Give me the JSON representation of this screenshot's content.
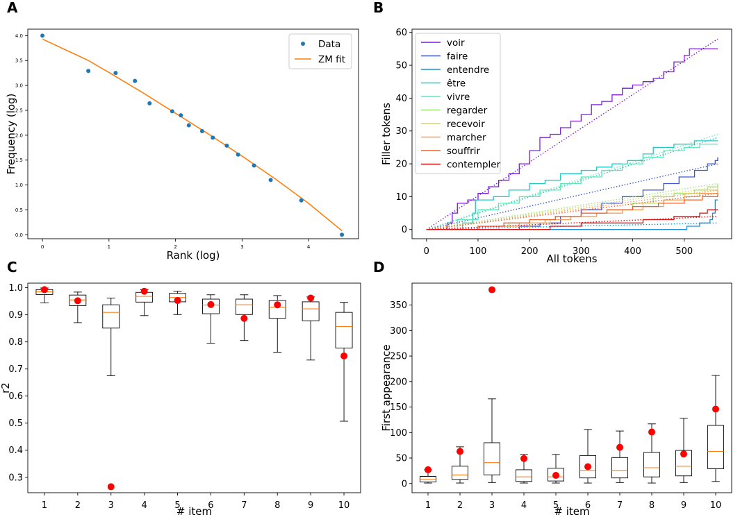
{
  "figure": {
    "panel_labels": [
      "A",
      "B",
      "C",
      "D"
    ]
  },
  "colors": {
    "data": "#1f77b4",
    "fit": "#ff7f0e",
    "median": "#ff7f0e",
    "red_dot": "#ff0000",
    "box": "#000000",
    "verbs": [
      "#7b1fd6",
      "#3f57cf",
      "#1a8fd6",
      "#22c7c7",
      "#5fe8b6",
      "#9fe57a",
      "#cfd96c",
      "#f5a05a",
      "#f0602a",
      "#d81414"
    ]
  },
  "chart_data": [
    {
      "panel": "A",
      "type": "scatter",
      "xlabel": "Rank (log)",
      "ylabel": "Frequency (log)",
      "xlim": [
        -0.22,
        4.75
      ],
      "ylim": [
        -0.08,
        4.13
      ],
      "xticks": [
        0,
        1,
        2,
        3,
        4
      ],
      "xtick_labels": [
        "0",
        "1",
        "2",
        "3",
        "4"
      ],
      "yticks": [
        0,
        0.5,
        1,
        1.5,
        2,
        2.5,
        3,
        3.5,
        4
      ],
      "ytick_labels": [
        "0.0",
        "0.5",
        "1.0",
        "1.5",
        "2.0",
        "2.5",
        "3.0",
        "3.5",
        "4.0"
      ],
      "legend": {
        "position": "upper right",
        "entries": [
          "Data",
          "ZM fit"
        ]
      },
      "series": [
        {
          "name": "Data",
          "kind": "points",
          "x": [
            0,
            0.69,
            1.1,
            1.39,
            1.61,
            1.95,
            2.08,
            2.2,
            2.4,
            2.56,
            2.77,
            2.94,
            3.18,
            3.43,
            3.89,
            4.5
          ],
          "y": [
            4.0,
            3.29,
            3.25,
            3.09,
            2.64,
            2.48,
            2.4,
            2.2,
            2.08,
            1.95,
            1.79,
            1.61,
            1.39,
            1.1,
            0.69,
            0.0
          ]
        },
        {
          "name": "ZM fit",
          "kind": "line",
          "x": [
            0,
            0.5,
            0.69,
            1.0,
            1.5,
            2.0,
            2.5,
            3.0,
            3.5,
            4.0,
            4.5
          ],
          "y": [
            3.93,
            3.62,
            3.5,
            3.26,
            2.86,
            2.44,
            2.02,
            1.58,
            1.12,
            0.63,
            0.08
          ]
        }
      ]
    },
    {
      "panel": "B",
      "type": "line",
      "xlabel": "All tokens",
      "ylabel": "Filler tokens",
      "xlim": [
        -28,
        592
      ],
      "ylim": [
        -2.8,
        61
      ],
      "xticks": [
        0,
        100,
        200,
        300,
        400,
        500
      ],
      "xtick_labels": [
        "0",
        "100",
        "200",
        "300",
        "400",
        "500"
      ],
      "yticks": [
        0,
        10,
        20,
        30,
        40,
        50,
        60
      ],
      "ytick_labels": [
        "0",
        "10",
        "20",
        "30",
        "40",
        "50",
        "60"
      ],
      "legend": {
        "position": "upper left"
      },
      "series": [
        {
          "name": "voir",
          "final": 55,
          "trend": [
            [
              0,
              0
            ],
            [
              565,
              58
            ]
          ],
          "points": [
            [
              0,
              0
            ],
            [
              30,
              0
            ],
            [
              40,
              2
            ],
            [
              50,
              5
            ],
            [
              60,
              8
            ],
            [
              80,
              9
            ],
            [
              100,
              11
            ],
            [
              120,
              13
            ],
            [
              140,
              15
            ],
            [
              160,
              17
            ],
            [
              180,
              20
            ],
            [
              200,
              24
            ],
            [
              220,
              28
            ],
            [
              240,
              29
            ],
            [
              260,
              31
            ],
            [
              280,
              33
            ],
            [
              300,
              35
            ],
            [
              320,
              38
            ],
            [
              340,
              39
            ],
            [
              360,
              41
            ],
            [
              380,
              43
            ],
            [
              400,
              44
            ],
            [
              420,
              45
            ],
            [
              440,
              46
            ],
            [
              460,
              48
            ],
            [
              480,
              51
            ],
            [
              500,
              53
            ],
            [
              510,
              55
            ],
            [
              565,
              55
            ]
          ]
        },
        {
          "name": "faire",
          "final": 22,
          "trend": [
            [
              0,
              0
            ],
            [
              565,
              20
            ]
          ],
          "points": [
            [
              0,
              0
            ],
            [
              140,
              0
            ],
            [
              180,
              1
            ],
            [
              220,
              2
            ],
            [
              260,
              4
            ],
            [
              300,
              6
            ],
            [
              340,
              8
            ],
            [
              380,
              10
            ],
            [
              420,
              12
            ],
            [
              460,
              14
            ],
            [
              490,
              16
            ],
            [
              520,
              18
            ],
            [
              545,
              20
            ],
            [
              560,
              21
            ],
            [
              565,
              22
            ]
          ]
        },
        {
          "name": "entendre",
          "final": 9,
          "trend": [
            [
              0,
              0
            ],
            [
              565,
              2
            ]
          ],
          "points": [
            [
              0,
              0
            ],
            [
              480,
              0
            ],
            [
              505,
              1
            ],
            [
              530,
              2
            ],
            [
              550,
              3
            ],
            [
              555,
              5
            ],
            [
              560,
              9
            ],
            [
              565,
              9
            ]
          ]
        },
        {
          "name": "être",
          "final": 27,
          "trend": [
            [
              0,
              0
            ],
            [
              565,
              28
            ]
          ],
          "points": [
            [
              0,
              0
            ],
            [
              40,
              0
            ],
            [
              70,
              2
            ],
            [
              90,
              5
            ],
            [
              95,
              9
            ],
            [
              130,
              10
            ],
            [
              160,
              12
            ],
            [
              200,
              14
            ],
            [
              230,
              15
            ],
            [
              260,
              17
            ],
            [
              300,
              18
            ],
            [
              330,
              19
            ],
            [
              360,
              20
            ],
            [
              390,
              21
            ],
            [
              420,
              23
            ],
            [
              440,
              25
            ],
            [
              480,
              26
            ],
            [
              520,
              27
            ],
            [
              565,
              27
            ]
          ]
        },
        {
          "name": "vivre",
          "final": 26,
          "trend": [
            [
              0,
              0
            ],
            [
              565,
              29
            ]
          ],
          "points": [
            [
              0,
              0
            ],
            [
              30,
              0
            ],
            [
              60,
              3
            ],
            [
              100,
              6
            ],
            [
              140,
              8
            ],
            [
              180,
              10
            ],
            [
              220,
              12
            ],
            [
              260,
              14
            ],
            [
              300,
              16
            ],
            [
              340,
              18
            ],
            [
              380,
              20
            ],
            [
              420,
              22
            ],
            [
              460,
              24
            ],
            [
              500,
              25
            ],
            [
              530,
              26
            ],
            [
              565,
              26
            ]
          ]
        },
        {
          "name": "regarder",
          "final": 14,
          "trend": [
            [
              0,
              0
            ],
            [
              565,
              14
            ]
          ],
          "points": [
            [
              0,
              0
            ],
            [
              110,
              0
            ],
            [
              160,
              2
            ],
            [
              200,
              3
            ],
            [
              250,
              4
            ],
            [
              300,
              5
            ],
            [
              350,
              6
            ],
            [
              400,
              8
            ],
            [
              440,
              10
            ],
            [
              480,
              11
            ],
            [
              520,
              12
            ],
            [
              545,
              13
            ],
            [
              565,
              14
            ]
          ]
        },
        {
          "name": "recevoir",
          "final": 13,
          "trend": [
            [
              0,
              0
            ],
            [
              565,
              13
            ]
          ],
          "points": [
            [
              0,
              0
            ],
            [
              150,
              0
            ],
            [
              200,
              2
            ],
            [
              240,
              3
            ],
            [
              280,
              4
            ],
            [
              330,
              5
            ],
            [
              380,
              6
            ],
            [
              420,
              8
            ],
            [
              460,
              9
            ],
            [
              500,
              11
            ],
            [
              540,
              12
            ],
            [
              565,
              13
            ]
          ]
        },
        {
          "name": "marcher",
          "final": 12,
          "trend": [
            [
              0,
              0
            ],
            [
              565,
              12
            ]
          ],
          "points": [
            [
              0,
              0
            ],
            [
              100,
              0
            ],
            [
              140,
              1
            ],
            [
              180,
              2
            ],
            [
              230,
              3
            ],
            [
              280,
              4
            ],
            [
              330,
              5
            ],
            [
              380,
              6
            ],
            [
              420,
              7
            ],
            [
              460,
              9
            ],
            [
              500,
              10
            ],
            [
              530,
              11
            ],
            [
              565,
              12
            ]
          ]
        },
        {
          "name": "souffrir",
          "final": 11,
          "trend": [
            [
              0,
              0
            ],
            [
              565,
              11
            ]
          ],
          "points": [
            [
              0,
              0
            ],
            [
              60,
              0
            ],
            [
              100,
              1
            ],
            [
              150,
              2
            ],
            [
              200,
              3
            ],
            [
              250,
              4
            ],
            [
              300,
              5
            ],
            [
              350,
              6
            ],
            [
              400,
              7
            ],
            [
              450,
              8
            ],
            [
              500,
              9
            ],
            [
              535,
              10
            ],
            [
              565,
              11
            ]
          ]
        },
        {
          "name": "contempler",
          "final": 6,
          "trend": [
            [
              0,
              0
            ],
            [
              565,
              4
            ]
          ],
          "points": [
            [
              0,
              0
            ],
            [
              160,
              0
            ],
            [
              240,
              1
            ],
            [
              300,
              2
            ],
            [
              360,
              2
            ],
            [
              420,
              3
            ],
            [
              480,
              4
            ],
            [
              530,
              5
            ],
            [
              545,
              6
            ],
            [
              565,
              6
            ]
          ]
        }
      ]
    },
    {
      "panel": "C",
      "type": "box",
      "xlabel": "# item",
      "ylabel": "r2",
      "xlim": [
        0.5,
        10.5
      ],
      "ylim": [
        0.243,
        1.017
      ],
      "yticks": [
        0.3,
        0.4,
        0.5,
        0.6,
        0.7,
        0.8,
        0.9,
        1.0
      ],
      "ytick_labels": [
        "0.3",
        "0.4",
        "0.5",
        "0.6",
        "0.7",
        "0.8",
        "0.9",
        "1.0"
      ],
      "categories": [
        "1",
        "2",
        "3",
        "4",
        "5",
        "6",
        "7",
        "8",
        "9",
        "10"
      ],
      "boxes": [
        {
          "whislo": 0.944,
          "q1": 0.975,
          "med": 0.985,
          "q3": 0.993,
          "whishi": 0.999
        },
        {
          "whislo": 0.871,
          "q1": 0.934,
          "med": 0.955,
          "q3": 0.973,
          "whishi": 0.984
        },
        {
          "whislo": 0.675,
          "q1": 0.851,
          "med": 0.909,
          "q3": 0.937,
          "whishi": 0.962
        },
        {
          "whislo": 0.897,
          "q1": 0.947,
          "med": 0.968,
          "q3": 0.983,
          "whishi": 0.993
        },
        {
          "whislo": 0.901,
          "q1": 0.948,
          "med": 0.964,
          "q3": 0.979,
          "whishi": 0.987
        },
        {
          "whislo": 0.795,
          "q1": 0.904,
          "med": 0.936,
          "q3": 0.958,
          "whishi": 0.974
        },
        {
          "whislo": 0.805,
          "q1": 0.901,
          "med": 0.937,
          "q3": 0.958,
          "whishi": 0.974
        },
        {
          "whislo": 0.762,
          "q1": 0.887,
          "med": 0.928,
          "q3": 0.953,
          "whishi": 0.971
        },
        {
          "whislo": 0.733,
          "q1": 0.878,
          "med": 0.922,
          "q3": 0.948,
          "whishi": 0.966
        },
        {
          "whislo": 0.507,
          "q1": 0.777,
          "med": 0.857,
          "q3": 0.909,
          "whishi": 0.946
        }
      ],
      "red_points": [
        0.993,
        0.952,
        0.265,
        0.987,
        0.953,
        0.938,
        0.887,
        0.937,
        0.962,
        0.748
      ]
    },
    {
      "panel": "D",
      "type": "box",
      "xlabel": "# item",
      "ylabel": "First appearance",
      "xlim": [
        0.5,
        10.5
      ],
      "ylim": [
        -18,
        393
      ],
      "yticks": [
        0,
        50,
        100,
        150,
        200,
        250,
        300,
        350
      ],
      "ytick_labels": [
        "0",
        "50",
        "100",
        "150",
        "200",
        "250",
        "300",
        "350"
      ],
      "categories": [
        "1",
        "2",
        "3",
        "4",
        "5",
        "6",
        "7",
        "8",
        "9",
        "10"
      ],
      "boxes": [
        {
          "whislo": 1,
          "q1": 3,
          "med": 8,
          "q3": 14,
          "whishi": 27
        },
        {
          "whislo": 1,
          "q1": 8,
          "med": 17,
          "q3": 34,
          "whishi": 72
        },
        {
          "whislo": 2,
          "q1": 17,
          "med": 41,
          "q3": 80,
          "whishi": 166
        },
        {
          "whislo": 1,
          "q1": 4,
          "med": 13,
          "q3": 27,
          "whishi": 57
        },
        {
          "whislo": 1,
          "q1": 5,
          "med": 13,
          "q3": 30,
          "whishi": 57
        },
        {
          "whislo": 1,
          "q1": 11,
          "med": 26,
          "q3": 55,
          "whishi": 106
        },
        {
          "whislo": 2,
          "q1": 11,
          "med": 26,
          "q3": 51,
          "whishi": 103
        },
        {
          "whislo": 1,
          "q1": 13,
          "med": 31,
          "q3": 61,
          "whishi": 117
        },
        {
          "whislo": 2,
          "q1": 15,
          "med": 34,
          "q3": 65,
          "whishi": 128
        },
        {
          "whislo": 4,
          "q1": 29,
          "med": 63,
          "q3": 114,
          "whishi": 212
        }
      ],
      "red_points": [
        27,
        63,
        380,
        49,
        16,
        33,
        71,
        101,
        58,
        146
      ]
    }
  ]
}
